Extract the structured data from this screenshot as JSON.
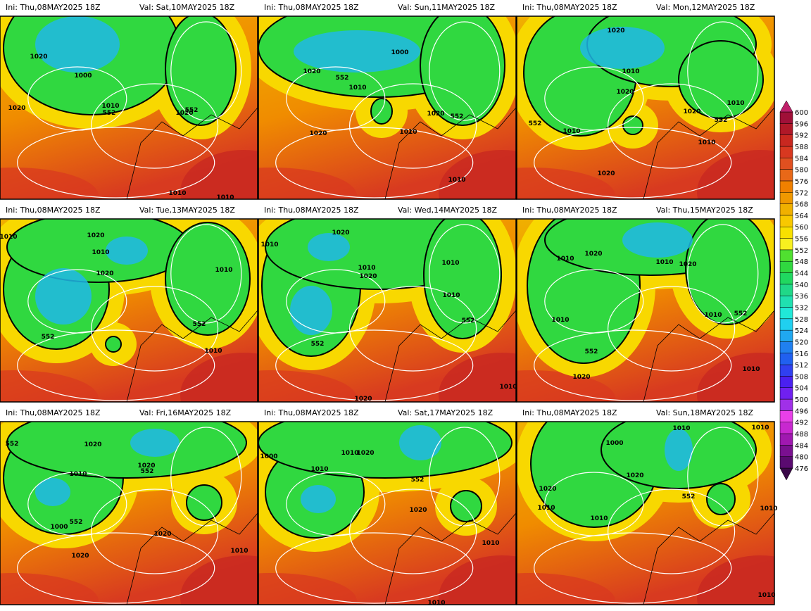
{
  "panels": [
    {
      "ini": "Ini: Thu,08MAY2025 18Z",
      "val": "Val: Sat,10MAY2025 18Z",
      "contour_labels": [
        1020,
        1000,
        1010,
        552,
        1020,
        1020,
        552,
        1010,
        1010
      ]
    },
    {
      "ini": "Ini: Thu,08MAY2025 18Z",
      "val": "Val: Sun,11MAY2025 18Z",
      "contour_labels": [
        1000,
        1020,
        552,
        1010,
        1020,
        552,
        1010,
        1020,
        1010
      ]
    },
    {
      "ini": "Ini: Thu,08MAY2025 18Z",
      "val": "Val: Mon,12MAY2025 18Z",
      "contour_labels": [
        1020,
        1010,
        1020,
        1010,
        552,
        1020,
        552,
        1010,
        1010,
        1020
      ]
    },
    {
      "ini": "Ini: Thu,08MAY2025 18Z",
      "val": "Val: Tue,13MAY2025 18Z",
      "contour_labels": [
        1010,
        1020,
        1010,
        1020,
        552,
        1010,
        552,
        1010
      ]
    },
    {
      "ini": "Ini: Thu,08MAY2025 18Z",
      "val": "Val: Wed,14MAY2025 18Z",
      "contour_labels": [
        1010,
        1020,
        1010,
        1020,
        1010,
        1010,
        552,
        552,
        1020,
        1010
      ]
    },
    {
      "ini": "Ini: Thu,08MAY2025 18Z",
      "val": "Val: Thu,15MAY2025 18Z",
      "contour_labels": [
        1020,
        1010,
        1010,
        1020,
        1010,
        552,
        1010,
        552,
        1020,
        1010
      ]
    },
    {
      "ini": "Ini: Thu,08MAY2025 18Z",
      "val": "Val: Fri,16MAY2025 18Z",
      "contour_labels": [
        552,
        1020,
        1020,
        552,
        1010,
        1000,
        552,
        1020,
        1020,
        1010
      ]
    },
    {
      "ini": "Ini: Thu,08MAY2025 18Z",
      "val": "Val: Sat,17MAY2025 18Z",
      "contour_labels": [
        1000,
        1010,
        1010,
        1020,
        552,
        1020,
        1010,
        1010
      ]
    },
    {
      "ini": "Ini: Thu,08MAY2025 18Z",
      "val": "Val: Sun,18MAY2025 18Z",
      "contour_labels": [
        1000,
        1010,
        1010,
        1020,
        1020,
        1010,
        1010,
        552,
        1010,
        1010
      ]
    }
  ],
  "colorbar": {
    "levels": [
      476,
      480,
      484,
      488,
      492,
      496,
      500,
      504,
      508,
      512,
      516,
      520,
      524,
      528,
      532,
      536,
      540,
      544,
      548,
      552,
      556,
      560,
      564,
      568,
      572,
      576,
      580,
      584,
      588,
      592,
      596,
      600
    ],
    "colors": [
      "#3a0848",
      "#5a0a70",
      "#7a1090",
      "#a018b0",
      "#c828d0",
      "#e840e8",
      "#a030e8",
      "#7020f0",
      "#4a20f0",
      "#3040f0",
      "#2060f0",
      "#2080f0",
      "#20a8f0",
      "#20d0f0",
      "#20e8d8",
      "#20e0b0",
      "#20d888",
      "#20d860",
      "#30d840",
      "#50e030",
      "#f8f020",
      "#f8e000",
      "#f8c800",
      "#f0b000",
      "#f09800",
      "#f08000",
      "#e86818",
      "#e05020",
      "#d83820",
      "#c82820",
      "#b01828",
      "#a01038",
      "#c0206a"
    ]
  }
}
